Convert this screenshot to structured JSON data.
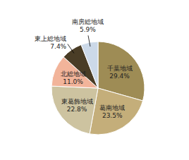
{
  "chart_data": {
    "type": "pie",
    "categories": [
      "千葉地域",
      "葛南地域",
      "東葛飾地域",
      "北総地域",
      "東上総地域",
      "南房総地域"
    ],
    "values": [
      29.4,
      23.5,
      22.8,
      11.0,
      7.4,
      5.9
    ],
    "value_labels": [
      "29.4%",
      "23.5%",
      "22.8%",
      "11.0%",
      "7.4%",
      "5.9%"
    ],
    "colors": [
      "#9e8c55",
      "#c4ae7a",
      "#cdc3a0",
      "#f2b49a",
      "#4a3d26",
      "#ccd9e8"
    ],
    "data_labels": true
  }
}
